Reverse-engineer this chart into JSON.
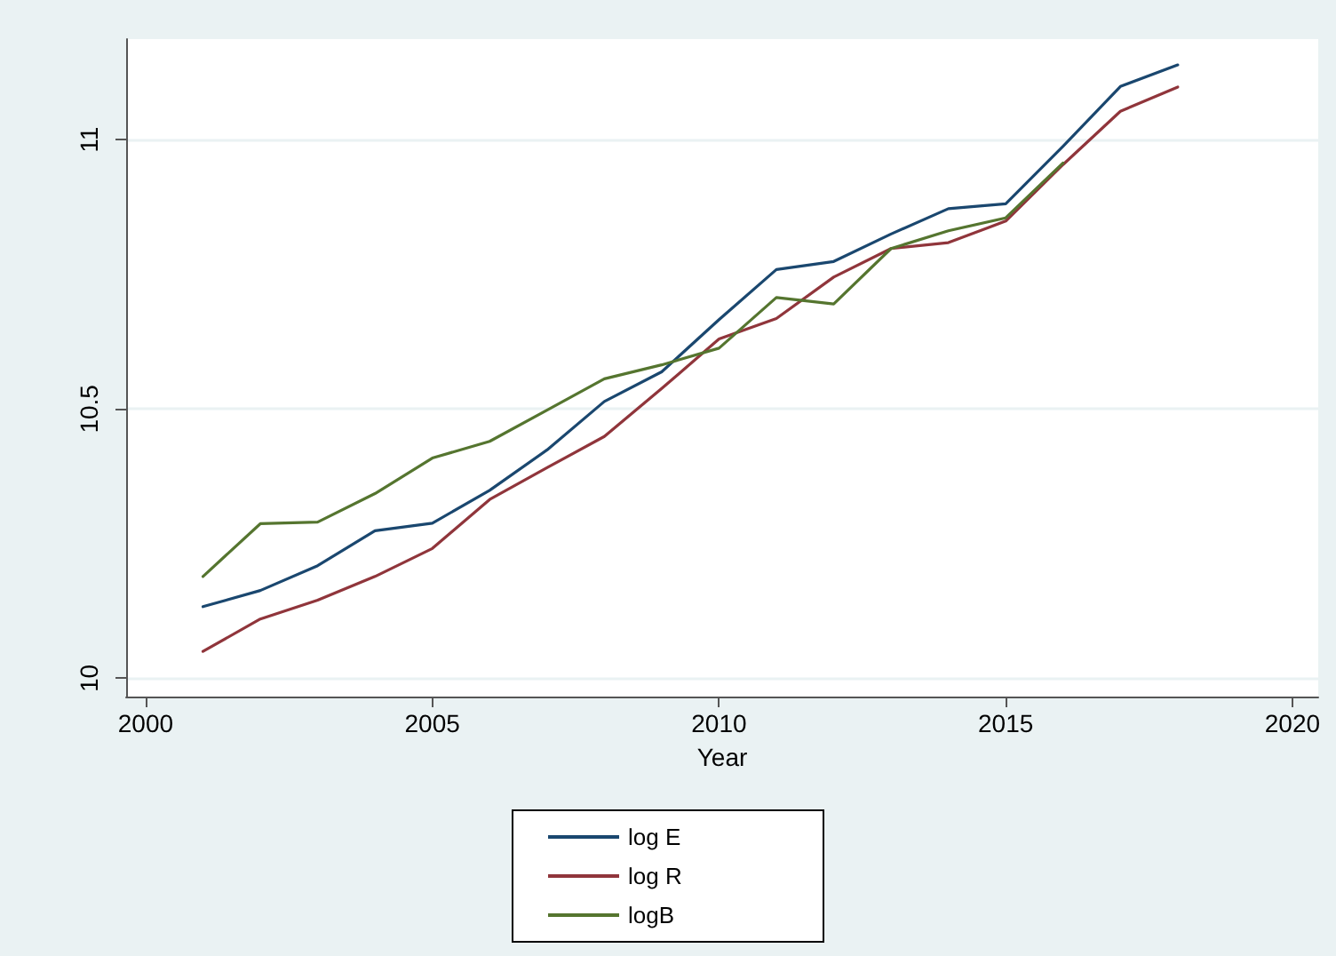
{
  "chart_data": {
    "type": "line",
    "xlabel": "Year",
    "x": [
      2001,
      2002,
      2003,
      2004,
      2005,
      2006,
      2007,
      2008,
      2009,
      2010,
      2011,
      2012,
      2013,
      2014,
      2015,
      2016,
      2017,
      2018
    ],
    "series": [
      {
        "name": "log E",
        "color": "#1a476f",
        "values": [
          10.133,
          10.163,
          10.209,
          10.274,
          10.288,
          10.349,
          10.424,
          10.514,
          10.569,
          10.666,
          10.759,
          10.774,
          10.825,
          10.872,
          10.881,
          10.988,
          11.099,
          11.139
        ]
      },
      {
        "name": "log R",
        "color": "#90353b",
        "values": [
          10.05,
          10.11,
          10.145,
          10.189,
          10.241,
          10.332,
          10.391,
          10.449,
          10.538,
          10.63,
          10.668,
          10.745,
          10.798,
          10.809,
          10.849,
          10.954,
          11.053,
          11.098
        ]
      },
      {
        "name": "logB",
        "color": "#55752f",
        "values": [
          10.189,
          10.287,
          10.29,
          10.343,
          10.409,
          10.44,
          10.498,
          10.556,
          10.582,
          10.613,
          10.707,
          10.695,
          10.798,
          10.831,
          10.855,
          10.957,
          null,
          null
        ]
      }
    ],
    "xlim": [
      1999.66,
      2020.45
    ],
    "xticks": [
      2000,
      2005,
      2010,
      2015,
      2020
    ],
    "ylim": [
      9.966,
      11.187
    ],
    "yticks": [
      10,
      10.5,
      11
    ],
    "grid": "y",
    "legend": "bottom",
    "marker": "none",
    "line_style": "solid"
  }
}
